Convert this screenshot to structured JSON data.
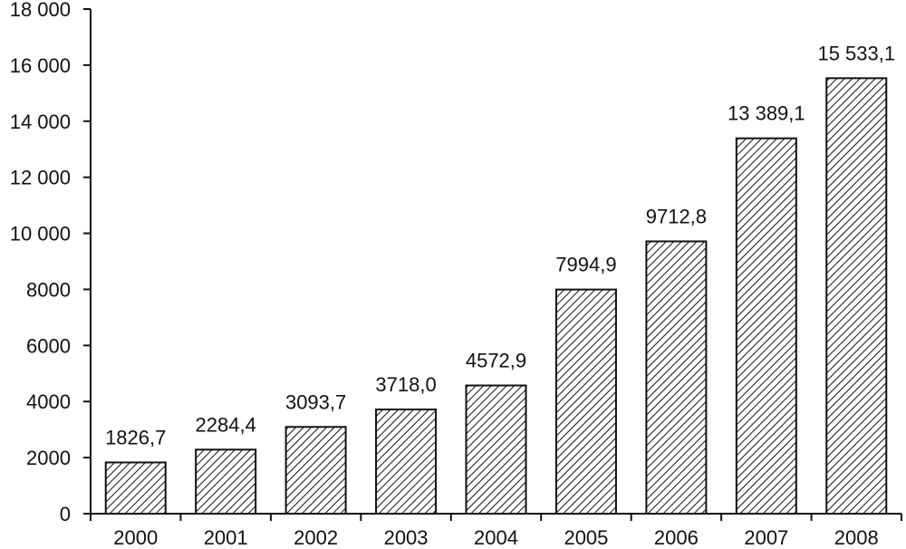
{
  "chart_data": {
    "type": "bar",
    "categories": [
      "2000",
      "2001",
      "2002",
      "2003",
      "2004",
      "2005",
      "2006",
      "2007",
      "2008"
    ],
    "values": [
      1826.7,
      2284.4,
      3093.7,
      3718.0,
      4572.9,
      7994.9,
      9712.8,
      13389.1,
      15533.1
    ],
    "data_labels": [
      "1826,7",
      "2284,4",
      "3093,7",
      "3718,0",
      "4572,9",
      "7994,9",
      "9712,8",
      "13 389,1",
      "15 533,1"
    ],
    "ylim": [
      0,
      18000
    ],
    "y_ticks": [
      0,
      2000,
      4000,
      6000,
      8000,
      10000,
      12000,
      14000,
      16000,
      18000
    ],
    "y_tick_labels": [
      "0",
      "2000",
      "4000",
      "6000",
      "8000",
      "10 000",
      "12 000",
      "14 000",
      "16 000",
      "18 000"
    ],
    "bar_fill": "diagonal-hatch",
    "bar_color": "#ffffff",
    "line_color": "#111111",
    "grid": false,
    "legend": false
  }
}
